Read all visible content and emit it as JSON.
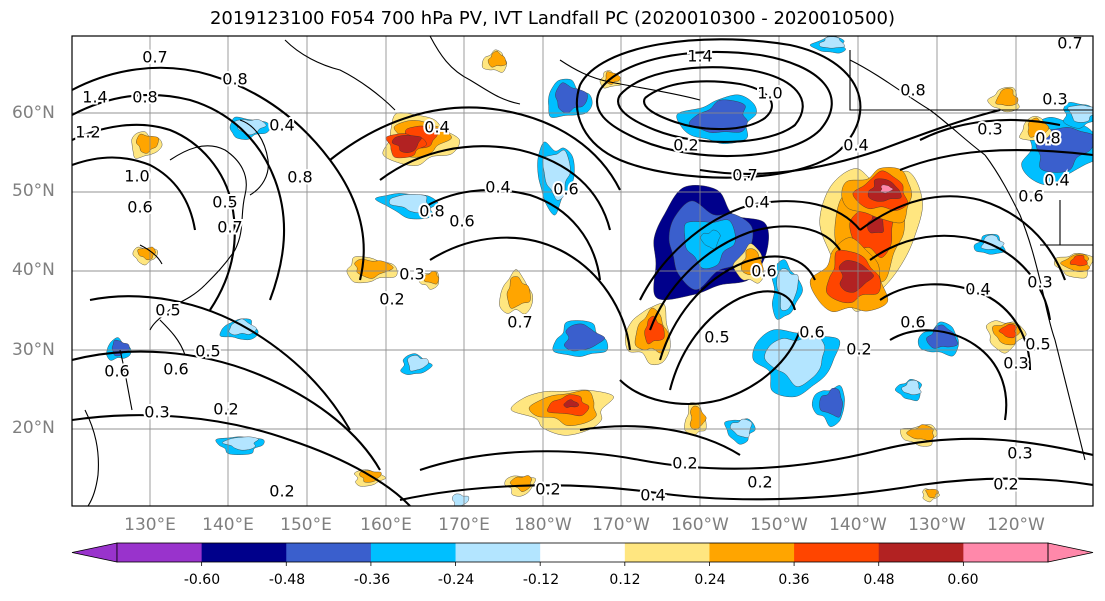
{
  "title": "2019123100 F054 700 hPa PV, IVT Landfall PC (2020010300 - 2020010500)",
  "lat_labels": [
    "60°N",
    "50°N",
    "40°N",
    "30°N",
    "20°N"
  ],
  "lon_labels": [
    "130°E",
    "140°E",
    "150°E",
    "160°E",
    "170°E",
    "180°W",
    "170°W",
    "160°W",
    "150°W",
    "140°W",
    "130°W",
    "120°W"
  ],
  "colorbar": {
    "ticks": [
      "-0.60",
      "-0.48",
      "-0.36",
      "-0.24",
      "-0.12",
      "0.12",
      "0.24",
      "0.36",
      "0.48",
      "0.60"
    ],
    "colors": [
      "#9933cc",
      "#00008b",
      "#3a5fcd",
      "#00bfff",
      "#b3e5ff",
      "#ffffff",
      "#ffe680",
      "#ffa500",
      "#ff4500",
      "#b22222",
      "#ff88aa"
    ]
  },
  "contour_labels": [
    "0.7",
    "0.8",
    "1.4",
    "0.8",
    "1.2",
    "1.0",
    "0.6",
    "0.4",
    "0.8",
    "0.5",
    "0.7",
    "0.3",
    "0.8",
    "0.6",
    "0.7",
    "0.4",
    "0.2",
    "0.5",
    "0.6",
    "0.5",
    "0.6",
    "0.3",
    "0.2",
    "0.2",
    "1.4",
    "1.0",
    "0.2",
    "0.4",
    "0.7",
    "0.4",
    "0.6",
    "0.5",
    "0.6",
    "0.2",
    "0.6",
    "0.3",
    "0.4",
    "0.3",
    "0.5",
    "0.6",
    "0.8",
    "0.4",
    "0.2",
    "0.4",
    "0.2",
    "0.2",
    "0.3",
    "0.2",
    "0.3",
    "0.7",
    "0.8",
    "0.3",
    "0.4",
    "0.6"
  ],
  "colors": {
    "grid": "#888888",
    "axis_label": "#7f7f7f",
    "contour": "#000000"
  }
}
